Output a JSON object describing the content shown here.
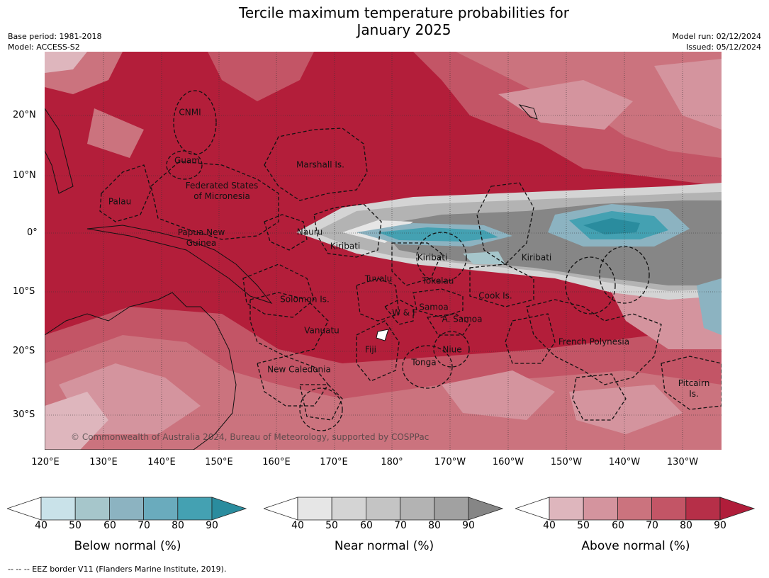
{
  "title_line1": "Tercile maximum temperature probabilities for",
  "title_line2": "January 2025",
  "base_period": "Base period: 1981-2018",
  "model": "Model: ACCESS-S2",
  "model_run": "Model run: 02/12/2024",
  "issued": "Issued: 05/12/2024",
  "lat_ticks": [
    "20°N",
    "10°N",
    "0°",
    "10°S",
    "20°S",
    "30°S"
  ],
  "lon_ticks": [
    "120°E",
    "130°E",
    "140°E",
    "150°E",
    "160°E",
    "170°E",
    "180°",
    "170°W",
    "160°W",
    "150°W",
    "140°W",
    "130°W"
  ],
  "regions": {
    "cnmi": "CNMI",
    "guam": "Guam",
    "marshall": "Marshall Is.",
    "palau": "Palau",
    "fsm_1": "Federated States",
    "fsm_2": "of Micronesia",
    "nauru": "Nauru",
    "png_1": "Papua New",
    "png_2": "Guinea",
    "kiribati_w": "Kiribati",
    "kiribati_c": "Kiribati",
    "kiribati_e": "Kiribati",
    "tuvalu": "Tuvalu",
    "tokelau": "Tokelau",
    "cook": "Cook Is.",
    "solomon": "Solomon Is.",
    "wf": "W & F",
    "samoa": "Samoa",
    "asamoa": "A. Samoa",
    "vanuatu": "Vanuatu",
    "fiji": "Fiji",
    "niue": "Niue",
    "tonga": "Tonga",
    "french_polynesia": "French Polynesia",
    "new_caledonia": "New Caledonia",
    "pitcairn_1": "Pitcairn",
    "pitcairn_2": "Is."
  },
  "copyright": "© Commonwealth of Australia 2024, Bureau of Meteorology, supported by COSPPac",
  "colorbars": [
    {
      "label": "Below normal (%)",
      "ticks": [
        "40",
        "50",
        "60",
        "70",
        "80",
        "90"
      ],
      "colors": [
        "#ffffff",
        "#c9e2e9",
        "#a6c6cb",
        "#8cb3c1",
        "#6aabbd",
        "#44a1b2",
        "#2a8c9e"
      ]
    },
    {
      "label": "Near normal (%)",
      "ticks": [
        "40",
        "50",
        "60",
        "70",
        "80",
        "90"
      ],
      "colors": [
        "#ffffff",
        "#e6e6e6",
        "#d4d4d4",
        "#c4c4c4",
        "#b3b3b3",
        "#a1a1a1",
        "#868686"
      ]
    },
    {
      "label": "Above normal (%)",
      "ticks": [
        "40",
        "50",
        "60",
        "70",
        "80",
        "90"
      ],
      "colors": [
        "#ffffff",
        "#deb6bd",
        "#d4949e",
        "#cb737e",
        "#c35566",
        "#b62f48",
        "#b01d3a"
      ]
    }
  ],
  "footnote": "-- -- -- EEZ border V11 (Flanders Marine Institute, 2019)."
}
